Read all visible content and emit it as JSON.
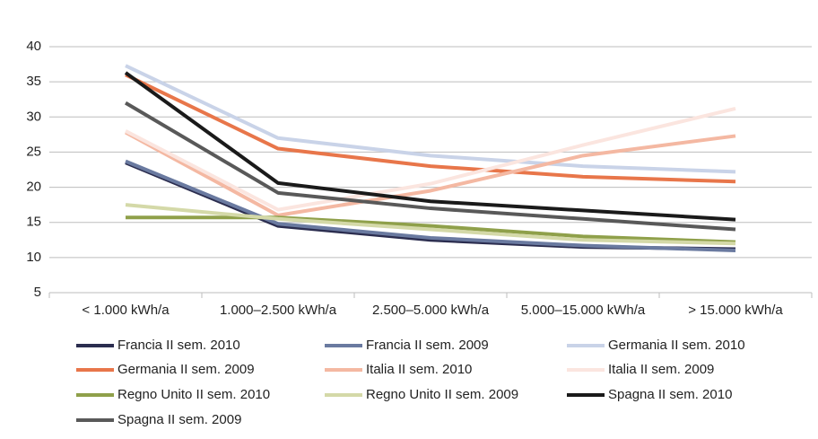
{
  "chart_data": {
    "type": "line",
    "categories": [
      "< 1.000 kWh/a",
      "1.000–2.500 kWh/a",
      "2.500–5.000 kWh/a",
      "5.000–15.000 kWh/a",
      "> 15.000 kWh/a"
    ],
    "ylim": [
      5,
      40
    ],
    "yticks": [
      5,
      10,
      15,
      20,
      25,
      30,
      35,
      40
    ],
    "grid": true,
    "legend": "bottom",
    "series": [
      {
        "name": "Francia II sem. 2010",
        "color": "#2b2d4f",
        "values": [
          23.5,
          14.5,
          12.5,
          11.5,
          11.2
        ]
      },
      {
        "name": "Francia II sem. 2009",
        "color": "#6a7aa0",
        "values": [
          23.7,
          14.8,
          12.8,
          11.7,
          11.0
        ]
      },
      {
        "name": "Germania II sem. 2010",
        "color": "#c9d3e8",
        "values": [
          37.3,
          27,
          24.5,
          23,
          22.2
        ]
      },
      {
        "name": "Germania II sem. 2009",
        "color": "#e8764a",
        "values": [
          36,
          25.5,
          23,
          21.5,
          20.8
        ]
      },
      {
        "name": "Italia II sem. 2010",
        "color": "#f4b8a2",
        "values": [
          27.8,
          16,
          19.5,
          24.5,
          27.3
        ]
      },
      {
        "name": "Italia II sem. 2009",
        "color": "#fbe5df",
        "values": [
          28,
          16.8,
          20.5,
          26,
          31.2
        ]
      },
      {
        "name": "Regno Unito II sem. 2010",
        "color": "#8fa04a",
        "values": [
          15.7,
          15.7,
          14.5,
          13,
          12.2
        ]
      },
      {
        "name": "Regno Unito II sem. 2009",
        "color": "#d4d9a8",
        "values": [
          17.5,
          15.5,
          14,
          12.5,
          12
        ]
      },
      {
        "name": "Spagna II sem. 2010",
        "color": "#1a1a1a",
        "values": [
          36.3,
          20.6,
          18,
          16.7,
          15.4
        ]
      },
      {
        "name": "Spagna II sem. 2009",
        "color": "#595959",
        "values": [
          32,
          19.2,
          17,
          15.5,
          14
        ]
      }
    ]
  }
}
